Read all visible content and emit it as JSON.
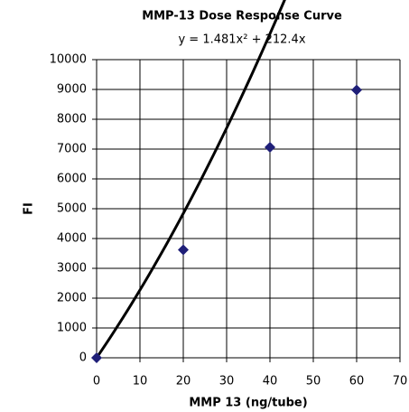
{
  "chart_data": {
    "type": "scatter",
    "title": "MMP-13 Dose Response Curve",
    "x_label": "MMP 13 (ng/tube)",
    "y_label": "FI",
    "x": [
      0,
      20,
      40,
      60
    ],
    "values": [
      0,
      3620,
      7060,
      8980
    ],
    "color": "#1f1f78",
    "trendline": {
      "label": "y = 1.481x² + 212.4x",
      "coefficients": [
        1.481,
        212.4
      ],
      "color": "#000000"
    },
    "xlim": [
      0,
      70
    ],
    "xticks": [
      0,
      10,
      20,
      30,
      40,
      50,
      60,
      70
    ],
    "ylim": [
      0,
      10000
    ],
    "yticks": [
      0,
      1000,
      2000,
      3000,
      4000,
      5000,
      6000,
      7000,
      8000,
      9000,
      10000
    ],
    "grid": true
  }
}
